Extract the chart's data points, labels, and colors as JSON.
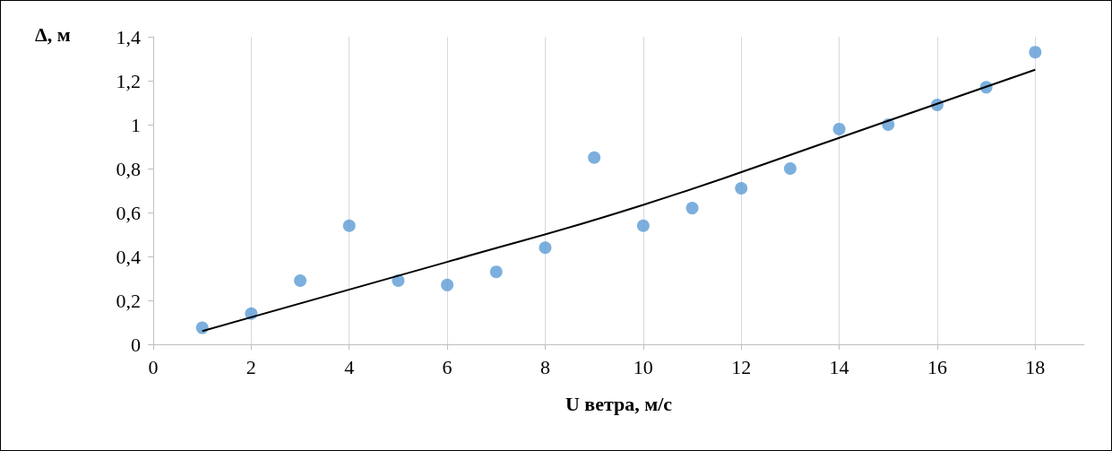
{
  "chart_data": {
    "type": "scatter",
    "xlabel": "U ветра, м/с",
    "ylabel": "Δ, м",
    "x": [
      1,
      2,
      3,
      4,
      5,
      6,
      7,
      8,
      9,
      10,
      11,
      12,
      13,
      14,
      15,
      16,
      17,
      18
    ],
    "series": [
      {
        "marker": "circle",
        "color": "#5b9bd5",
        "values": [
          0.075,
          0.14,
          0.29,
          0.54,
          0.29,
          0.27,
          0.33,
          0.44,
          0.85,
          0.54,
          0.62,
          0.71,
          0.8,
          0.98,
          1.0,
          1.09,
          1.17,
          1.33
        ]
      },
      {
        "type": "line",
        "marker": "none",
        "color": "#000000",
        "x": [
          1,
          6,
          10,
          14,
          18
        ],
        "values": [
          0.06,
          0.375,
          0.635,
          0.94,
          1.25
        ]
      }
    ],
    "xlim": [
      0,
      19
    ],
    "xticks": [
      0,
      2,
      4,
      6,
      8,
      10,
      12,
      14,
      16,
      18
    ],
    "ylim": [
      0,
      1.4
    ],
    "yticks": [
      0,
      {
        "value": 0.2,
        "label": "0,2"
      },
      {
        "value": 0.4,
        "label": "0,4"
      },
      {
        "value": 0.6,
        "label": "0,6"
      },
      {
        "value": 0.8,
        "label": "0,8"
      },
      1,
      {
        "value": 1.2,
        "label": "1,2"
      },
      {
        "value": 1.4,
        "label": "1,4"
      }
    ],
    "grid": "x",
    "line_style": "solid"
  }
}
